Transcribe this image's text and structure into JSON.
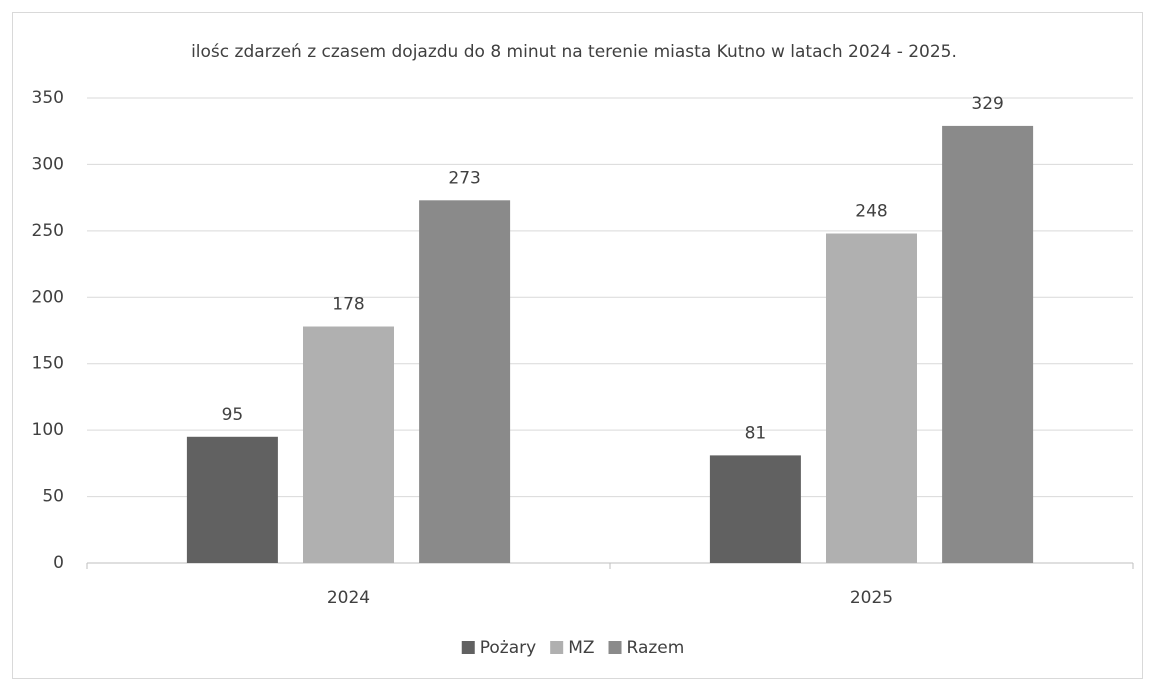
{
  "chart_data": {
    "type": "bar",
    "title": "ilośc zdarzeń z czasem dojazdu do 8 minut na terenie miasta Kutno w latach 2024 - 2025.",
    "categories": [
      "2024",
      "2025"
    ],
    "series": [
      {
        "name": "Pożary",
        "color": "#616161",
        "values": [
          95,
          81
        ]
      },
      {
        "name": "MZ",
        "color": "#b0b0b0",
        "values": [
          178,
          248
        ]
      },
      {
        "name": "Razem",
        "color": "#8a8a8a",
        "values": [
          273,
          329
        ]
      }
    ],
    "ylim": [
      0,
      350
    ],
    "yticks": [
      0,
      50,
      100,
      150,
      200,
      250,
      300,
      350
    ],
    "grid": true,
    "legend": "bottom"
  }
}
